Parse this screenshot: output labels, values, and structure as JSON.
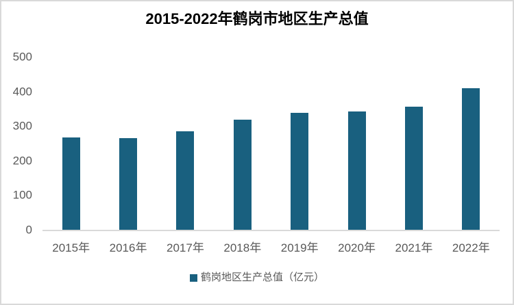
{
  "frame": {
    "background": "#FFFFFF",
    "border_color": "#D9D9D9"
  },
  "chart_data": {
    "type": "bar",
    "title": "2015-2022年鹤岗市地区生产总值",
    "categories": [
      "2015年",
      "2016年",
      "2017年",
      "2018年",
      "2019年",
      "2020年",
      "2021年",
      "2022年"
    ],
    "series": [
      {
        "name": "鹤岗地区生产总值（亿元）",
        "color": "#19607F",
        "values": [
          267,
          265,
          284,
          319,
          338,
          342,
          356,
          410
        ]
      }
    ],
    "xlabel": "",
    "ylabel": "",
    "ylim": [
      0,
      500
    ],
    "yticks": [
      0,
      100,
      200,
      300,
      400,
      500
    ],
    "grid": false,
    "legend_position": "bottom",
    "axis_label_color": "#595959",
    "axis_line_color": "#D9D9D9",
    "title_color": "#000000"
  },
  "legend": {
    "label": "鹤岗地区生产总值（亿元）"
  }
}
